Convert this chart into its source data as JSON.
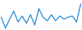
{
  "values": [
    28,
    10,
    25,
    38,
    20,
    30,
    18,
    32,
    15,
    42,
    28,
    22,
    32,
    22,
    30,
    25,
    28,
    30,
    20,
    50
  ],
  "line_color": "#2b8fd4",
  "background_color": "#ffffff",
  "linewidth": 1.1
}
